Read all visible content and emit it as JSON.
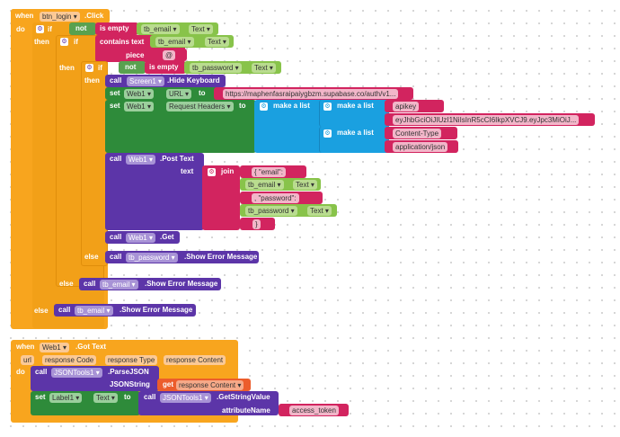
{
  "event1": {
    "when": "when",
    "component": "btn_login",
    "event": ".Click",
    "do": "do",
    "if1": {
      "if": "if",
      "then": "then",
      "not": "not",
      "is_empty": "is empty",
      "comp": "tb_email",
      "prop": "Text",
      "if2": {
        "if": "if",
        "then": "then",
        "contains": "contains text",
        "comp": "tb_email",
        "prop": "Text",
        "piece": "piece",
        "piece_value": "@",
        "if3": {
          "if": "if",
          "then": "then",
          "not": "not",
          "is_empty": "is empty",
          "comp": "tb_password",
          "prop": "Text",
          "hide": {
            "call": "call",
            "comp": "Screen1",
            "method": ".Hide Keyboard"
          },
          "seturl": {
            "set": "set",
            "comp": "Web1",
            "prop": "URL",
            "to": "to",
            "value": "https://maphenfasraipaiygbzm.supabase.co/auth/v1..."
          },
          "setheaders": {
            "set": "set",
            "comp": "Web1",
            "prop": "Request Headers",
            "to": "to",
            "make_list": "make a list",
            "list1": [
              "apikey",
              "eyJhbGciOiJIUzI1NiIsInR5cCI6IkpXVCJ9.eyJpc3MiOiJ..."
            ],
            "list2": [
              "Content-Type",
              "application/json"
            ]
          },
          "post": {
            "call": "call",
            "comp": "Web1",
            "method": ".Post Text",
            "text": "text",
            "join": "join",
            "s1": "{  \"email\": ",
            "g1comp": "tb_email",
            "g1prop": "Text",
            "s2": ",  \"password\": ",
            "g2comp": "tb_password",
            "g2prop": "Text",
            "s3": "}"
          },
          "get": {
            "call": "call",
            "comp": "Web1",
            "method": ".Get"
          },
          "else": "else",
          "err": {
            "call": "call",
            "comp": "tb_password",
            "method": ".Show Error Message"
          }
        },
        "else": "else",
        "err": {
          "call": "call",
          "comp": "tb_email",
          "method": ".Show Error Message"
        }
      },
      "else": "else",
      "err": {
        "call": "call",
        "comp": "tb_email",
        "method": ".Show Error Message"
      }
    }
  },
  "event2": {
    "when": "when",
    "component": "Web1",
    "event": ".Got Text",
    "params": [
      "url",
      "response Code",
      "response Type",
      "response Content"
    ],
    "do": "do",
    "parse": {
      "call": "call",
      "comp": "JSONTools1",
      "method": ".ParseJSON",
      "arg": "JSONString",
      "get": "get",
      "var": "response Content"
    },
    "set": {
      "set": "set",
      "comp": "Label1",
      "prop": "Text",
      "to": "to"
    },
    "getstr": {
      "call": "call",
      "comp": "JSONTools1",
      "method": ".GetStringValue",
      "arg": "attributeName",
      "value": "access_token"
    }
  }
}
